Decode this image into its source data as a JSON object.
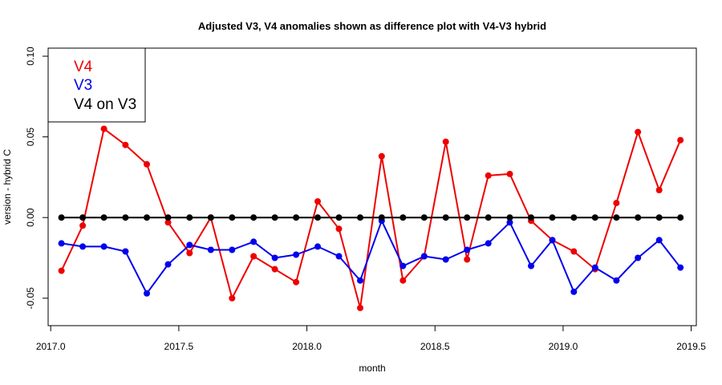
{
  "chart_data": {
    "type": "line",
    "title": "Adjusted V3, V4 anomalies shown as difference plot with V4-V3 hybrid",
    "xlabel": "month",
    "ylabel": "version - hybrid C",
    "xlim": [
      2016.99,
      2019.52
    ],
    "ylim": [
      -0.067,
      0.105
    ],
    "x_ticks": [
      {
        "value": 2017.0,
        "label": "2017.0"
      },
      {
        "value": 2017.5,
        "label": "2017.5"
      },
      {
        "value": 2018.0,
        "label": "2018.0"
      },
      {
        "value": 2018.5,
        "label": "2018.5"
      },
      {
        "value": 2019.0,
        "label": "2019.0"
      },
      {
        "value": 2019.5,
        "label": "2019.5"
      }
    ],
    "y_ticks": [
      {
        "value": -0.05,
        "label": "-0.05"
      },
      {
        "value": 0.0,
        "label": "0.00"
      },
      {
        "value": 0.05,
        "label": "0.05"
      },
      {
        "value": 0.1,
        "label": "0.10"
      }
    ],
    "legend_position": "top-left",
    "x": [
      2017.042,
      2017.125,
      2017.208,
      2017.292,
      2017.375,
      2017.458,
      2017.542,
      2017.625,
      2017.708,
      2017.792,
      2017.875,
      2017.958,
      2018.042,
      2018.125,
      2018.208,
      2018.292,
      2018.375,
      2018.458,
      2018.542,
      2018.625,
      2018.708,
      2018.792,
      2018.875,
      2018.958,
      2019.042,
      2019.125,
      2019.208,
      2019.292,
      2019.375,
      2019.458
    ],
    "series": [
      {
        "name": "V4",
        "color": "#ee0000",
        "values": [
          -0.033,
          -0.005,
          0.055,
          0.045,
          0.033,
          -0.003,
          -0.022,
          0.0,
          -0.05,
          -0.024,
          -0.032,
          -0.04,
          0.01,
          -0.007,
          -0.056,
          0.038,
          -0.039,
          -0.024,
          0.047,
          -0.026,
          0.026,
          0.027,
          -0.002,
          -0.014,
          -0.021,
          -0.032,
          0.009,
          0.053,
          0.017,
          0.048
        ]
      },
      {
        "name": "V3",
        "color": "#0000ee",
        "values": [
          -0.016,
          -0.018,
          -0.018,
          -0.021,
          -0.047,
          -0.029,
          -0.017,
          -0.02,
          -0.02,
          -0.015,
          -0.025,
          -0.023,
          -0.018,
          -0.024,
          -0.039,
          -0.002,
          -0.03,
          -0.024,
          -0.026,
          -0.02,
          -0.016,
          -0.003,
          -0.03,
          -0.014,
          -0.046,
          -0.031,
          -0.039,
          -0.025,
          -0.014,
          -0.031
        ]
      },
      {
        "name": "V4 on V3",
        "color": "#000000",
        "values": [
          0,
          0,
          0,
          0,
          0,
          0,
          0,
          0,
          0,
          0,
          0,
          0,
          0,
          0,
          0,
          0,
          0,
          0,
          0,
          0,
          0,
          0,
          0,
          0,
          0,
          0,
          0,
          0,
          0,
          0
        ]
      }
    ]
  }
}
